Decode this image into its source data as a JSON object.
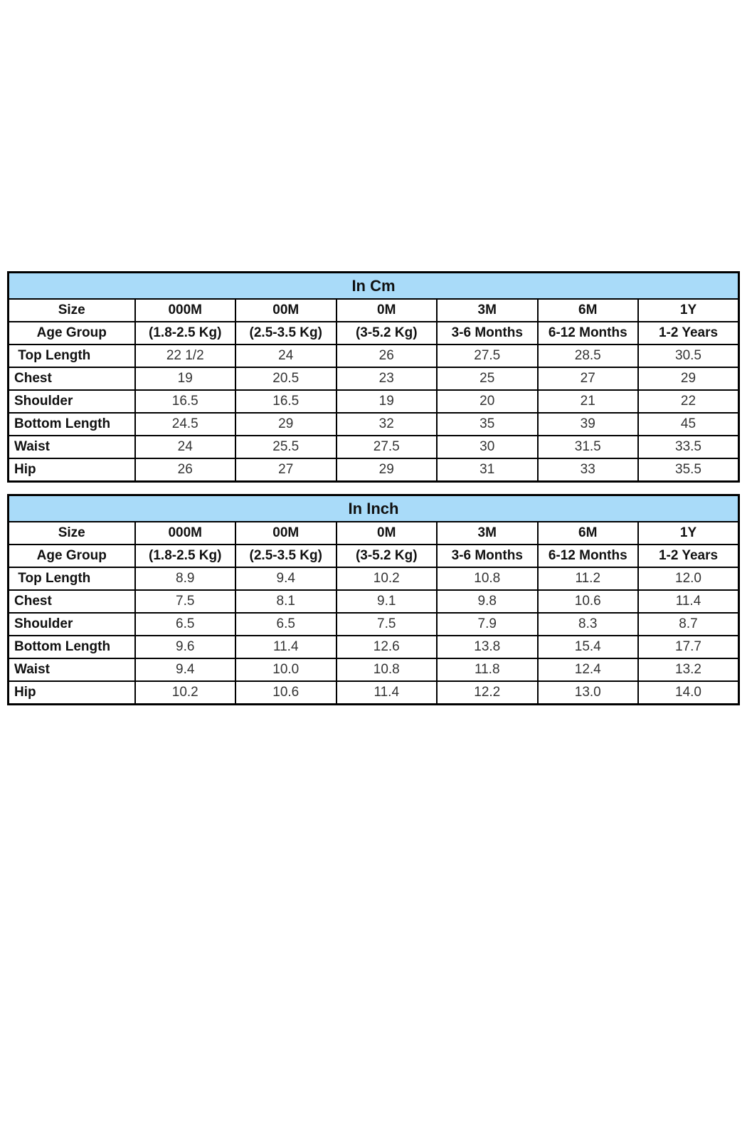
{
  "page": {
    "background": "#ffffff"
  },
  "colors": {
    "header_bg": "#A9DBF9",
    "border": "#000000",
    "label_text": "#111111",
    "value_text": "#333333"
  },
  "tables": [
    {
      "id": "cm",
      "title": "In Cm",
      "size_row_label": "Size",
      "age_row_label": "Age Group",
      "sizes": [
        "000M",
        "00M",
        "0M",
        "3M",
        "6M",
        "1Y"
      ],
      "age_groups": [
        "(1.8-2.5 Kg)",
        "(2.5-3.5 Kg)",
        "(3-5.2 Kg)",
        "3-6 Months",
        "6-12 Months",
        "1-2 Years"
      ],
      "rows": [
        {
          "label": " Top Length",
          "values": [
            "22 1/2",
            "24",
            "26",
            "27.5",
            "28.5",
            "30.5"
          ]
        },
        {
          "label": "Chest",
          "values": [
            "19",
            "20.5",
            "23",
            "25",
            "27",
            "29"
          ]
        },
        {
          "label": "Shoulder",
          "values": [
            "16.5",
            "16.5",
            "19",
            "20",
            "21",
            "22"
          ]
        },
        {
          "label": "Bottom Length",
          "values": [
            "24.5",
            "29",
            "32",
            "35",
            "39",
            "45"
          ]
        },
        {
          "label": "Waist",
          "values": [
            "24",
            "25.5",
            "27.5",
            "30",
            "31.5",
            "33.5"
          ]
        },
        {
          "label": "Hip",
          "values": [
            "26",
            "27",
            "29",
            "31",
            "33",
            "35.5"
          ]
        }
      ]
    },
    {
      "id": "inch",
      "title": "In Inch",
      "size_row_label": "Size",
      "age_row_label": "Age Group",
      "sizes": [
        "000M",
        "00M",
        "0M",
        "3M",
        "6M",
        "1Y"
      ],
      "age_groups": [
        "(1.8-2.5 Kg)",
        "(2.5-3.5 Kg)",
        "(3-5.2 Kg)",
        "3-6 Months",
        "6-12 Months",
        "1-2 Years"
      ],
      "rows": [
        {
          "label": " Top Length",
          "values": [
            "8.9",
            "9.4",
            "10.2",
            "10.8",
            "11.2",
            "12.0"
          ]
        },
        {
          "label": "Chest",
          "values": [
            "7.5",
            "8.1",
            "9.1",
            "9.8",
            "10.6",
            "11.4"
          ]
        },
        {
          "label": "Shoulder",
          "values": [
            "6.5",
            "6.5",
            "7.5",
            "7.9",
            "8.3",
            "8.7"
          ]
        },
        {
          "label": "Bottom Length",
          "values": [
            "9.6",
            "11.4",
            "12.6",
            "13.8",
            "15.4",
            "17.7"
          ]
        },
        {
          "label": "Waist",
          "values": [
            "9.4",
            "10.0",
            "10.8",
            "11.8",
            "12.4",
            "13.2"
          ]
        },
        {
          "label": "Hip",
          "values": [
            "10.2",
            "10.6",
            "11.4",
            "12.2",
            "13.0",
            "14.0"
          ]
        }
      ]
    }
  ]
}
